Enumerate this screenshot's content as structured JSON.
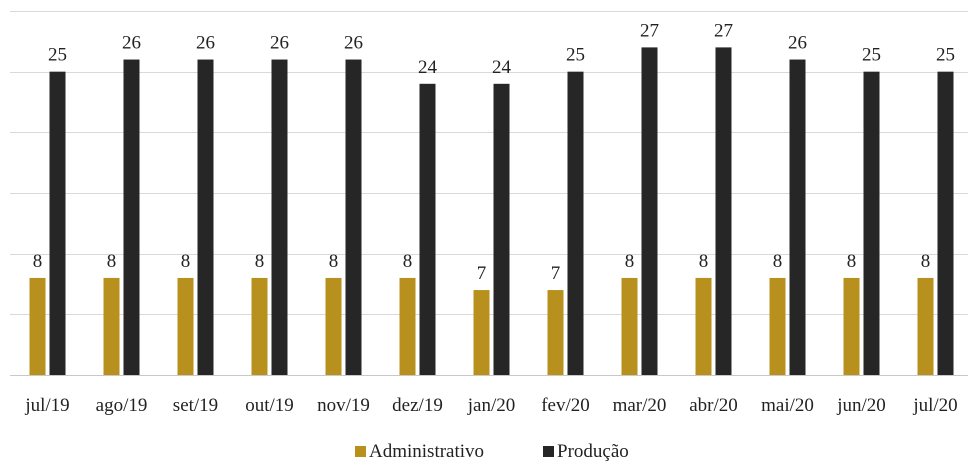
{
  "chart_data": {
    "type": "bar",
    "categories": [
      "jul/19",
      "ago/19",
      "set/19",
      "out/19",
      "nov/19",
      "dez/19",
      "jan/20",
      "fev/20",
      "mar/20",
      "abr/20",
      "mai/20",
      "jun/20",
      "jul/20"
    ],
    "series": [
      {
        "name": "Administrativo",
        "color": "#B8901E",
        "values": [
          8,
          8,
          8,
          8,
          8,
          8,
          7,
          7,
          8,
          8,
          8,
          8,
          8
        ]
      },
      {
        "name": "Produção",
        "color": "#262626",
        "values": [
          25,
          26,
          26,
          26,
          26,
          24,
          24,
          25,
          27,
          27,
          26,
          25,
          25
        ]
      }
    ],
    "ylim": [
      0,
      30
    ],
    "grid": true,
    "legend": "bottom-center",
    "title": "",
    "xlabel": "",
    "ylabel": ""
  }
}
